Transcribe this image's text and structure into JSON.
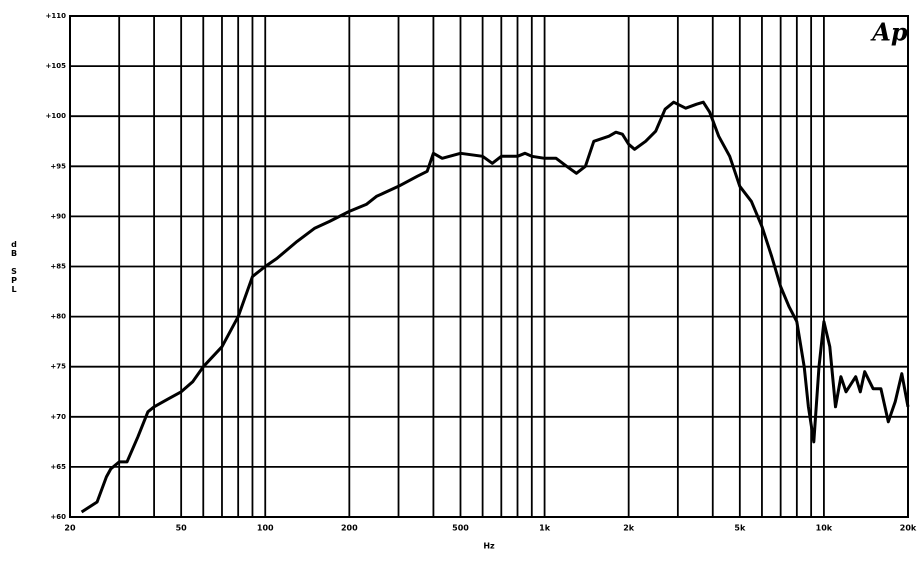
{
  "chart_data": {
    "type": "line",
    "logo": "Ap",
    "y_label": "dB SPL",
    "x_label": "Hz",
    "x_log": true,
    "grid": true,
    "xlim": [
      20,
      20000
    ],
    "ylim": [
      60,
      110
    ],
    "xticks": [
      20,
      50,
      100,
      200,
      500,
      {
        "value": 1000,
        "label": "1k"
      },
      {
        "value": 2000,
        "label": "2k"
      },
      {
        "value": 5000,
        "label": "5k"
      },
      {
        "value": 10000,
        "label": "10k"
      },
      {
        "value": 20000,
        "label": "20k"
      }
    ],
    "x_minor_grid": [
      30,
      40,
      60,
      70,
      80,
      90,
      300,
      400,
      600,
      700,
      800,
      900,
      3000,
      4000,
      6000,
      7000,
      8000,
      9000
    ],
    "yticks": [
      {
        "value": 60,
        "label": "+60"
      },
      {
        "value": 65,
        "label": "+65"
      },
      {
        "value": 70,
        "label": "+70"
      },
      {
        "value": 75,
        "label": "+75"
      },
      {
        "value": 80,
        "label": "+80"
      },
      {
        "value": 85,
        "label": "+85"
      },
      {
        "value": 90,
        "label": "+90"
      },
      {
        "value": 95,
        "label": "+95"
      },
      {
        "value": 100,
        "label": "+100"
      },
      {
        "value": 105,
        "label": "+105"
      },
      {
        "value": 110,
        "label": "+110"
      }
    ],
    "x": [
      22,
      25,
      27,
      28,
      30,
      32,
      35,
      38,
      40,
      45,
      50,
      55,
      60,
      70,
      80,
      90,
      100,
      110,
      130,
      150,
      170,
      200,
      230,
      250,
      300,
      350,
      380,
      400,
      430,
      500,
      600,
      650,
      700,
      800,
      850,
      900,
      1000,
      1100,
      1200,
      1300,
      1400,
      1500,
      1700,
      1800,
      1900,
      2000,
      2100,
      2300,
      2500,
      2700,
      2900,
      3200,
      3500,
      3700,
      3900,
      4200,
      4600,
      5000,
      5500,
      6000,
      6500,
      7000,
      7500,
      8000,
      8500,
      8800,
      9200,
      9600,
      10000,
      10500,
      11000,
      11500,
      12000,
      13000,
      13500,
      14000,
      15000,
      16000,
      17000,
      18000,
      19000,
      20000
    ],
    "series": [
      {
        "color": "#000000",
        "values": [
          60.5,
          61.5,
          64,
          64.8,
          65.5,
          65.5,
          68,
          70.5,
          71,
          71.8,
          72.5,
          73.5,
          75,
          77,
          80,
          84,
          85,
          85.8,
          87.5,
          88.8,
          89.5,
          90.5,
          91.2,
          92,
          93,
          94,
          94.5,
          96.3,
          95.8,
          96.3,
          96,
          95.3,
          96,
          96,
          96.3,
          96,
          95.8,
          95.8,
          95,
          94.3,
          95,
          97.5,
          98,
          98.4,
          98.2,
          97.2,
          96.7,
          97.5,
          98.5,
          100.7,
          101.4,
          100.8,
          101.2,
          101.4,
          100.4,
          98,
          96,
          93,
          91.5,
          89,
          86,
          83,
          81,
          79.5,
          75,
          71,
          67.5,
          75,
          79.5,
          77,
          71,
          74,
          72.5,
          74,
          72.5,
          74.5,
          72.8,
          72.8,
          69.5,
          71.5,
          74.3,
          71
        ]
      }
    ]
  }
}
